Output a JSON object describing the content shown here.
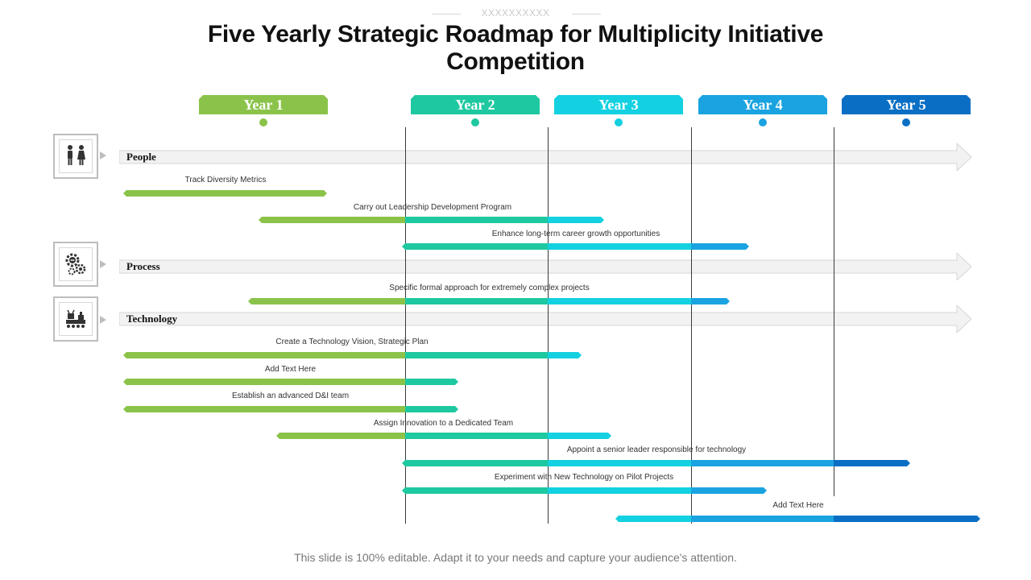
{
  "header": {
    "decoration": "XXXXXXXXXX",
    "title": "Five Yearly Strategic Roadmap for Multiplicity Initiative Competition"
  },
  "years": [
    {
      "label": "Year 1",
      "color": "#8bc34a"
    },
    {
      "label": "Year 2",
      "color": "#1ec8a0"
    },
    {
      "label": "Year 3",
      "color": "#13d1e0"
    },
    {
      "label": "Year 4",
      "color": "#1aa3e0"
    },
    {
      "label": "Year 5",
      "color": "#0a6fc4"
    }
  ],
  "categories": [
    {
      "label": "People",
      "icon": "people-icon"
    },
    {
      "label": "Process",
      "icon": "gears-icon"
    },
    {
      "label": "Technology",
      "icon": "technology-icon"
    }
  ],
  "tasks": [
    {
      "label": "Track Diversity Metrics"
    },
    {
      "label": "Carry out Leadership Development Program"
    },
    {
      "label": "Enhance long-term career growth opportunities"
    },
    {
      "label": "Specific formal approach for extremely complex projects"
    },
    {
      "label": "Create a Technology Vision, Strategic Plan"
    },
    {
      "label": "Add Text Here"
    },
    {
      "label": "Establish an advanced D&I team"
    },
    {
      "label": "Assign Innovation to a Dedicated Team"
    },
    {
      "label": "Appoint a senior leader responsible for technology"
    },
    {
      "label": "Experiment  with New Technology on Pilot  Projects"
    },
    {
      "label": "Add Text Here"
    }
  ],
  "footer": {
    "text": "This slide is 100% editable. Adapt it to your needs and capture your audience's attention."
  }
}
